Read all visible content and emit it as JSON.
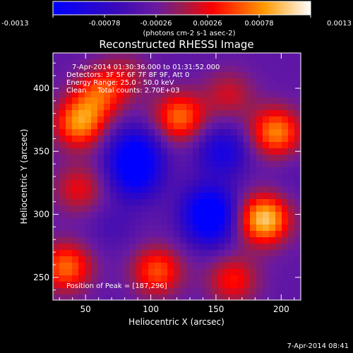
{
  "chart_data": {
    "type": "heatmap",
    "title": "Reconstructed RHESSI Image",
    "xlabel": "Heliocentric X (arcsec)",
    "ylabel": "Heliocentric Y (arcsec)",
    "xlim": [
      25,
      215
    ],
    "ylim": [
      232,
      428
    ],
    "xticks": [
      50,
      100,
      150,
      200
    ],
    "yticks": [
      250,
      300,
      350,
      400
    ],
    "colorbar": {
      "label": "(photons cm-2 s-1 asec-2)",
      "range": [
        -0.0013,
        0.0013
      ],
      "ticks": [
        "-0.0013",
        "-0.00078",
        "-0.00026",
        "0.00026",
        "0.00078",
        "0.0013"
      ]
    },
    "annotations": [
      "7-Apr-2014 01:30:36.000 to 01:31:52.000",
      "Detectors: 3F 5F 6F 7F 8F 9F, Att 0",
      "Energy Range: 25.0 - 50.0 keV",
      "Clean     Total counts: 2.70E+03"
    ],
    "peak_label": "Position of Peak = [187,296]",
    "peak": [
      187,
      296
    ],
    "sources": [
      {
        "x": 187,
        "y": 296,
        "value": 0.0013
      },
      {
        "x": 45,
        "y": 372,
        "value": 0.001
      },
      {
        "x": 122,
        "y": 377,
        "value": 0.0009
      },
      {
        "x": 196,
        "y": 365,
        "value": 0.001
      },
      {
        "x": 45,
        "y": 320,
        "value": 0.0005
      },
      {
        "x": 60,
        "y": 395,
        "value": 0.0007
      },
      {
        "x": 35,
        "y": 258,
        "value": 0.0009
      },
      {
        "x": 105,
        "y": 255,
        "value": 0.0008
      },
      {
        "x": 163,
        "y": 248,
        "value": 0.0006
      },
      {
        "x": 160,
        "y": 395,
        "value": 0.0004
      },
      {
        "x": 80,
        "y": 410,
        "value": 0.0003
      },
      {
        "x": 88,
        "y": 350,
        "value": -0.001
      },
      {
        "x": 88,
        "y": 330,
        "value": -0.0009
      },
      {
        "x": 145,
        "y": 305,
        "value": -0.001
      },
      {
        "x": 155,
        "y": 350,
        "value": -0.0008
      },
      {
        "x": 145,
        "y": 290,
        "value": -0.0007
      },
      {
        "x": 70,
        "y": 290,
        "value": -0.0003
      },
      {
        "x": 210,
        "y": 330,
        "value": -0.0002
      }
    ]
  },
  "footer": {
    "timestamp": "7-Apr-2014 08:41"
  }
}
